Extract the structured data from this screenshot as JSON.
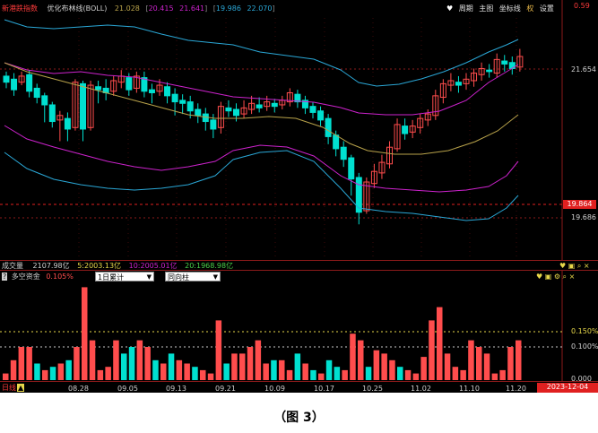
{
  "kline_panel": {
    "index_name": "新港跌指数",
    "indicator_label": "优化布林线(BOLL)",
    "indicator_values": [
      "21.028",
      "20.415",
      "21.641",
      "19.986",
      "22.070"
    ],
    "toolbar": {
      "period_label": "周期",
      "chart_label": "主图",
      "coord_label": "坐标线",
      "rights_label": "权",
      "settings_label": "设置"
    },
    "price_labels": {
      "top": "0.59",
      "upper": "21.654",
      "current": "19.864",
      "lower": "19.686"
    }
  },
  "volume_strip": {
    "label": "成交量",
    "total": "2107.98亿",
    "ma5": "5:2003.13亿",
    "ma10": "10:2005.01亿",
    "ma20": "20:1968.98亿"
  },
  "sub_panel": {
    "title": "多空资金",
    "value": "0.105%",
    "select_period": "1日累计",
    "select_type": "同向柱",
    "level_labels": {
      "high": "0.150%",
      "mid": "0.100%",
      "low": "0.000"
    }
  },
  "time_axis": {
    "period_label": "日线",
    "dates": [
      "08.28",
      "09.05",
      "09.13",
      "09.21",
      "10.09",
      "10.17",
      "10.25",
      "11.02",
      "11.10",
      "11.20"
    ],
    "current_date": "2023-12-04"
  },
  "caption": "（图 3）",
  "colors": {
    "up": "#ff4d4d",
    "down": "#00e0d0",
    "upper_band": "#2aa7d6",
    "mid_band": "#b8a24a",
    "lower_band": "#cc22cc",
    "ma": "#e8e8e8"
  }
}
